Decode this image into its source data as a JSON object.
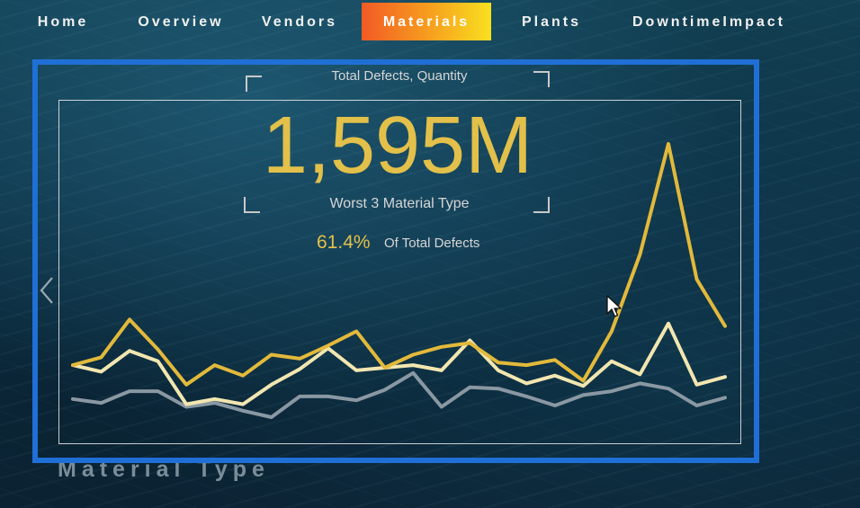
{
  "nav": {
    "items": [
      {
        "label": "Home"
      },
      {
        "label": "Overview"
      },
      {
        "label": "Vendors"
      },
      {
        "label": "Materials"
      },
      {
        "label": "Plants"
      },
      {
        "label": "DowntimeImpact"
      }
    ],
    "active": "Materials"
  },
  "card": {
    "subtitle": "Total Defects, Quantity",
    "value": "1,595M",
    "caption": "Worst 3 Material Type",
    "percent": "61.4%",
    "percent_label": "Of Total Defects"
  },
  "section_title": "Material Type",
  "colors": {
    "accent_gold": "#e2c04a",
    "selection_blue": "#1f6fd6",
    "series_cream": "#f2e6b0",
    "series_gray": "#8a98a3"
  },
  "icons": {
    "left_arrow": "chevron-left-icon",
    "cursor": "mouse-pointer-icon"
  },
  "chart_data": {
    "type": "line",
    "series": [
      {
        "color": "#e2b93b",
        "values": [
          60,
          66,
          95,
          72,
          45,
          60,
          52,
          68,
          65,
          75,
          86,
          58,
          68,
          74,
          77,
          62,
          60,
          64,
          48,
          86,
          145,
          230,
          126,
          90
        ]
      },
      {
        "color": "#f2e6b0",
        "values": [
          60,
          55,
          71,
          63,
          30,
          34,
          30,
          45,
          57,
          73,
          56,
          58,
          60,
          56,
          79,
          56,
          46,
          52,
          44,
          63,
          53,
          92,
          45,
          51
        ]
      },
      {
        "color": "#8a98a3",
        "values": [
          34,
          31,
          40,
          40,
          28,
          31,
          25,
          20,
          36,
          36,
          33,
          41,
          54,
          28,
          43,
          42,
          36,
          29,
          37,
          40,
          46,
          42,
          29,
          35
        ]
      }
    ],
    "ylim": [
      0,
      250
    ],
    "grid": false,
    "legend": "none"
  }
}
